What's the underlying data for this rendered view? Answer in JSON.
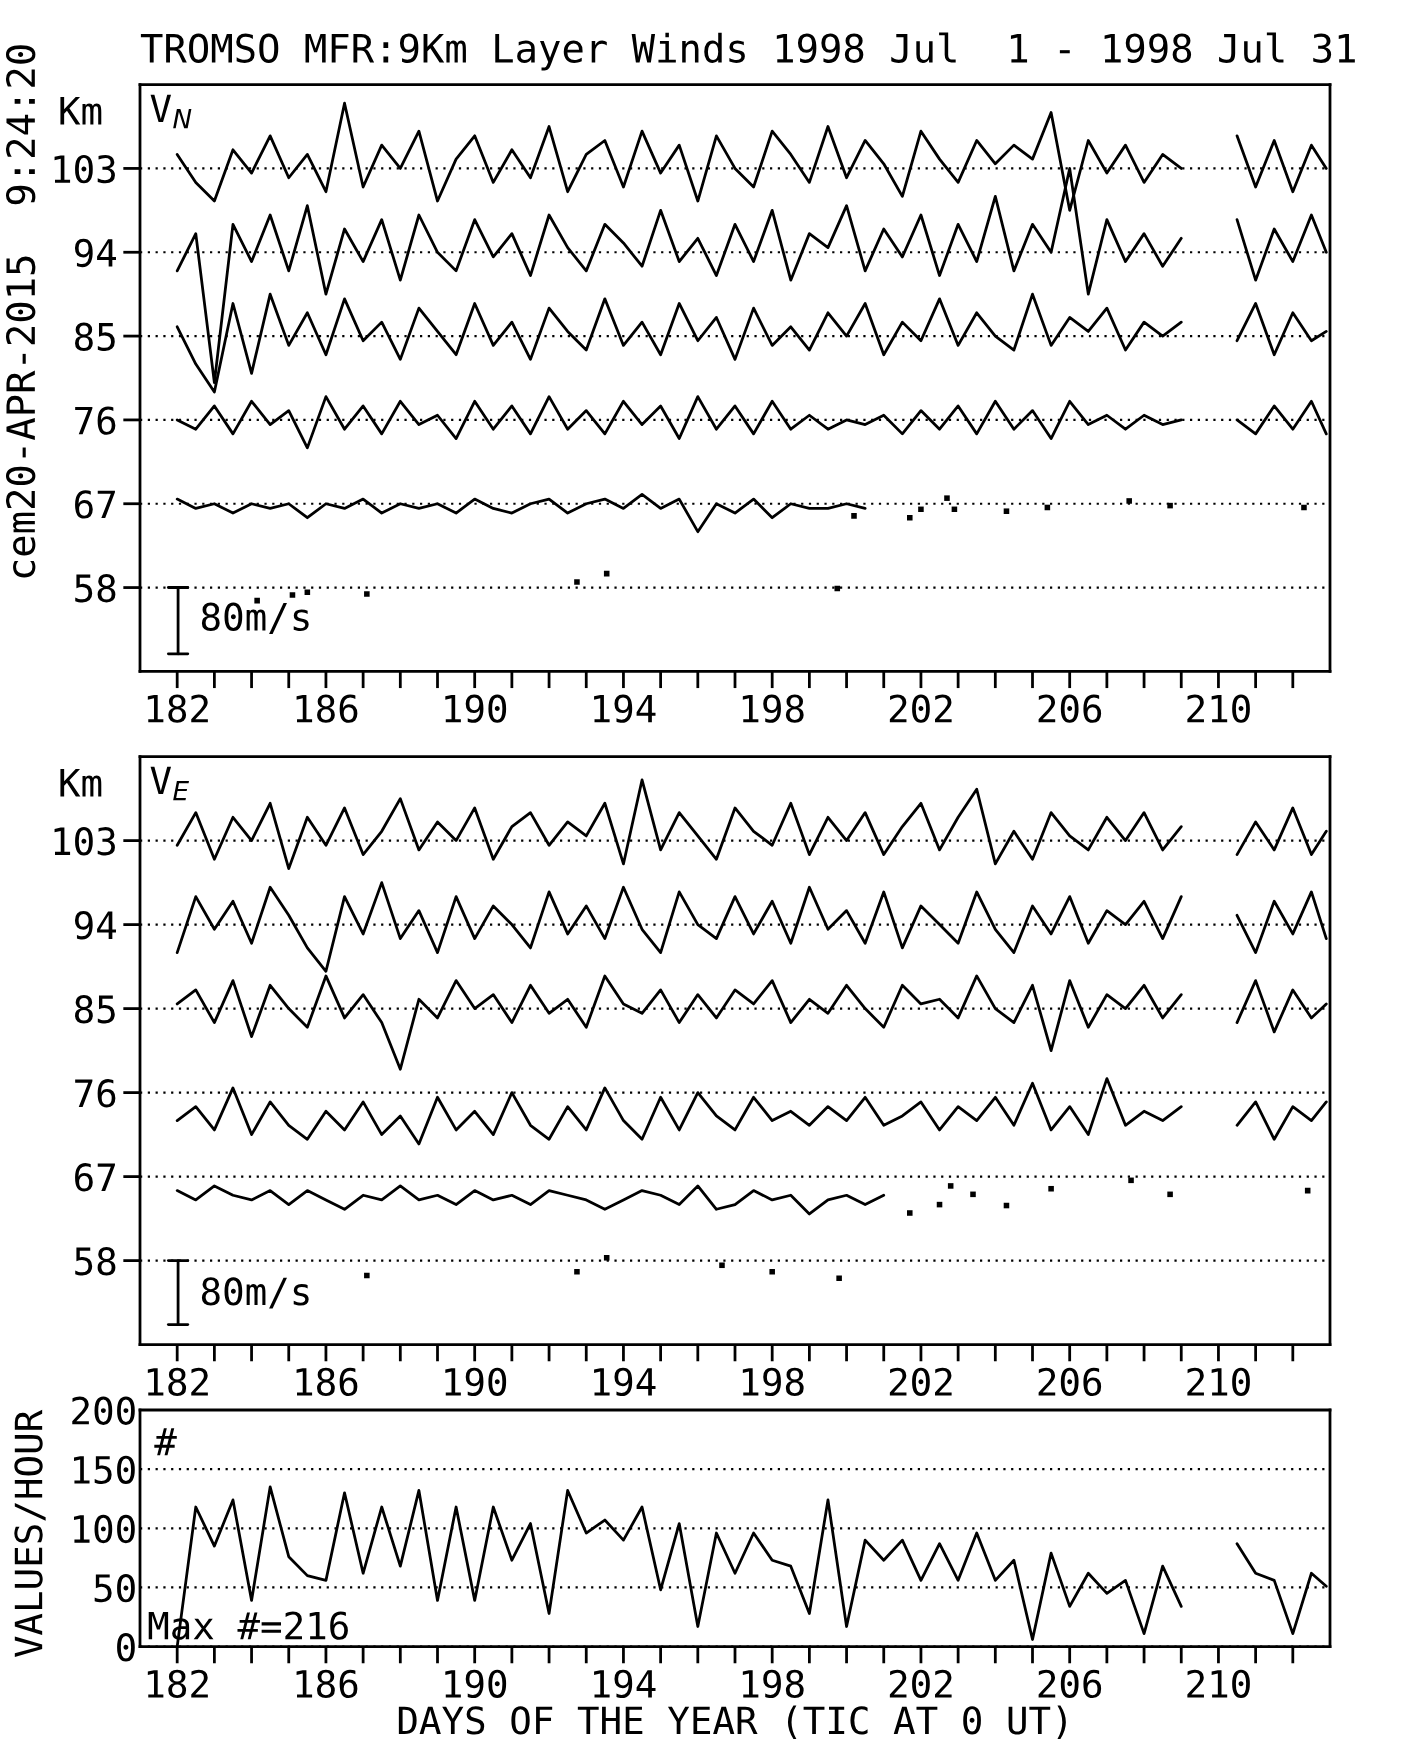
{
  "chart_data": [
    {
      "type": "line",
      "title": "TROMSO MFR:9Km Layer Winds 1998 Jul  1 - 1998 Jul 31",
      "ylabel": "Km",
      "annotations": [
        "cem20-APR-2015  9:24:20",
        "V$_{N}$",
        "80m/s"
      ],
      "x": [
        182,
        182.5,
        183,
        183.5,
        184,
        184.5,
        185,
        185.5,
        186,
        186.5,
        187,
        187.5,
        188,
        188.5,
        189,
        189.5,
        190,
        190.5,
        191,
        191.5,
        192,
        192.5,
        193,
        193.5,
        194,
        194.5,
        195,
        195.5,
        196,
        196.5,
        197,
        197.5,
        198,
        198.5,
        199,
        199.5,
        200,
        200.5,
        201,
        201.5,
        202,
        202.5,
        203,
        203.5,
        204,
        204.5,
        205,
        205.5,
        206,
        206.5,
        207,
        207.5,
        208,
        208.5,
        209,
        209.5,
        210,
        210.5,
        211,
        211.5,
        212,
        212.5,
        212.9
      ],
      "series": [
        {
          "color": "#000000",
          "values": [
            104.5,
            101.5,
            99.5,
            105.0,
            102.5,
            106.5,
            102.0,
            104.5,
            100.5,
            110.0,
            101.0,
            105.5,
            103.0,
            107.0,
            99.5,
            104.0,
            106.5,
            101.5,
            105.0,
            102.0,
            107.5,
            100.5,
            104.5,
            106.0,
            101.0,
            107.0,
            102.5,
            105.5,
            99.5,
            106.5,
            103.0,
            101.0,
            107.0,
            104.5,
            101.5,
            107.5,
            102.0,
            106.0,
            103.5,
            100.0,
            107.0,
            104.0,
            101.5,
            106.0,
            103.5,
            105.5,
            104.0,
            109.0,
            98.5,
            106.0,
            102.5,
            105.5,
            101.5,
            104.5,
            103.0,
            null,
            null,
            106.5,
            101.0,
            106.0,
            100.5,
            105.5,
            103.0
          ]
        },
        {
          "color": "#000000",
          "values": [
            92.0,
            96.0,
            80.0,
            97.0,
            93.0,
            98.0,
            92.0,
            99.0,
            89.5,
            96.5,
            93.0,
            97.5,
            91.0,
            98.0,
            94.0,
            92.0,
            97.5,
            93.5,
            96.0,
            91.5,
            98.0,
            94.5,
            92.0,
            97.0,
            95.0,
            92.5,
            98.5,
            93.0,
            95.5,
            91.5,
            97.0,
            93.0,
            98.5,
            91.0,
            96.0,
            94.5,
            99.0,
            92.0,
            96.5,
            93.5,
            98.0,
            91.5,
            97.0,
            93.0,
            100.0,
            92.0,
            97.0,
            94.0,
            103.0,
            89.5,
            97.5,
            93.0,
            96.0,
            92.5,
            95.5,
            null,
            null,
            97.5,
            91.0,
            96.5,
            93.0,
            98.0,
            94.0
          ]
        },
        {
          "color": "#000000",
          "values": [
            86.0,
            82.0,
            79.0,
            88.5,
            81.0,
            89.5,
            84.0,
            87.5,
            83.0,
            89.0,
            84.5,
            86.5,
            82.5,
            88.0,
            85.5,
            83.0,
            88.5,
            84.0,
            86.5,
            82.5,
            88.0,
            85.5,
            83.5,
            89.0,
            84.0,
            86.5,
            83.0,
            88.5,
            84.5,
            87.0,
            82.5,
            88.0,
            84.0,
            86.0,
            83.5,
            87.5,
            85.0,
            88.5,
            83.0,
            86.5,
            84.5,
            89.0,
            84.0,
            87.5,
            85.0,
            83.5,
            89.5,
            84.0,
            87.0,
            85.5,
            88.0,
            83.5,
            86.5,
            85.0,
            86.5,
            null,
            null,
            84.5,
            88.5,
            83.0,
            87.5,
            84.5,
            85.5
          ]
        },
        {
          "color": "#000000",
          "values": [
            76.0,
            75.0,
            77.5,
            74.5,
            78.0,
            75.5,
            77.0,
            73.0,
            78.5,
            75.0,
            77.5,
            74.5,
            78.0,
            75.5,
            76.5,
            74.0,
            78.0,
            75.0,
            77.5,
            74.5,
            78.5,
            75.0,
            77.0,
            74.5,
            78.0,
            75.5,
            77.5,
            74.0,
            78.5,
            75.0,
            77.5,
            74.5,
            78.0,
            75.0,
            76.5,
            75.0,
            76.0,
            75.5,
            76.5,
            74.5,
            77.0,
            75.0,
            77.5,
            74.5,
            78.0,
            75.0,
            77.0,
            74.0,
            78.0,
            75.5,
            76.5,
            75.0,
            76.5,
            75.5,
            76.0,
            null,
            null,
            76.0,
            74.5,
            77.5,
            75.0,
            78.0,
            74.5
          ]
        },
        {
          "color": "#000000",
          "values": [
            67.5,
            66.5,
            67.0,
            66.0,
            67.0,
            66.5,
            67.0,
            65.5,
            67.0,
            66.5,
            67.5,
            66.0,
            67.0,
            66.5,
            67.0,
            66.0,
            67.5,
            66.5,
            66.0,
            67.0,
            67.5,
            66.0,
            67.0,
            67.5,
            66.5,
            68.0,
            66.5,
            67.5,
            64.0,
            67.0,
            66.0,
            67.5,
            65.5,
            67.0,
            66.5,
            66.5,
            67.0,
            66.5,
            null,
            null,
            null,
            null,
            null,
            null,
            null,
            null,
            null,
            null,
            null,
            null,
            null,
            null,
            null,
            null,
            null,
            null,
            null,
            null,
            null,
            null,
            null,
            null,
            null
          ]
        },
        {
          "type": "scatter",
          "marker": "square",
          "color": "#000000",
          "x": [
            184.15,
            185.1,
            185.5,
            187.1,
            192.75,
            193.55,
            199.75,
            200.2,
            201.7,
            202.0,
            202.7,
            202.9,
            204.3,
            205.4,
            207.6,
            208.7,
            212.3
          ],
          "values": [
            56.6,
            57.2,
            57.5,
            57.3,
            58.6,
            59.5,
            57.9,
            65.7,
            65.5,
            66.4,
            67.6,
            66.4,
            66.2,
            66.6,
            67.3,
            66.8,
            66.6
          ]
        }
      ],
      "xlim": [
        181,
        213
      ],
      "xticks": [
        182,
        {
          "value": 183,
          "label": null
        },
        {
          "value": 184,
          "label": null
        },
        {
          "value": 185,
          "label": null
        },
        186,
        {
          "value": 187,
          "label": null
        },
        {
          "value": 188,
          "label": null
        },
        {
          "value": 189,
          "label": null
        },
        190,
        {
          "value": 191,
          "label": null
        },
        {
          "value": 192,
          "label": null
        },
        {
          "value": 193,
          "label": null
        },
        194,
        {
          "value": 195,
          "label": null
        },
        {
          "value": 196,
          "label": null
        },
        {
          "value": 197,
          "label": null
        },
        198,
        {
          "value": 199,
          "label": null
        },
        {
          "value": 200,
          "label": null
        },
        {
          "value": 201,
          "label": null
        },
        202,
        {
          "value": 203,
          "label": null
        },
        {
          "value": 204,
          "label": null
        },
        {
          "value": 205,
          "label": null
        },
        206,
        {
          "value": 207,
          "label": null
        },
        {
          "value": 208,
          "label": null
        },
        {
          "value": 209,
          "label": null
        },
        210,
        {
          "value": 211,
          "label": null
        },
        {
          "value": 212,
          "label": null
        }
      ],
      "ylim": [
        49,
        112
      ],
      "yticks": [
        58,
        67,
        76,
        85,
        94,
        103
      ],
      "grid": "y"
    },
    {
      "type": "line",
      "ylabel": "Km",
      "annotations": [
        "V$_{E}$",
        "80m/s"
      ],
      "x": [
        182,
        182.5,
        183,
        183.5,
        184,
        184.5,
        185,
        185.5,
        186,
        186.5,
        187,
        187.5,
        188,
        188.5,
        189,
        189.5,
        190,
        190.5,
        191,
        191.5,
        192,
        192.5,
        193,
        193.5,
        194,
        194.5,
        195,
        195.5,
        196,
        196.5,
        197,
        197.5,
        198,
        198.5,
        199,
        199.5,
        200,
        200.5,
        201,
        201.5,
        202,
        202.5,
        203,
        203.5,
        204,
        204.5,
        205,
        205.5,
        206,
        206.5,
        207,
        207.5,
        208,
        208.5,
        209,
        209.5,
        210,
        210.5,
        211,
        211.5,
        212,
        212.5,
        212.9
      ],
      "series": [
        {
          "color": "#000000",
          "values": [
            102.5,
            106.0,
            101.0,
            105.5,
            103.0,
            107.0,
            100.0,
            105.5,
            102.5,
            106.5,
            101.5,
            104.0,
            107.5,
            102.0,
            105.0,
            103.0,
            106.5,
            101.0,
            104.5,
            106.0,
            102.5,
            105.0,
            103.5,
            107.0,
            100.5,
            109.5,
            102.0,
            106.0,
            103.5,
            101.0,
            106.5,
            104.0,
            102.5,
            107.0,
            101.5,
            105.5,
            103.0,
            106.0,
            101.5,
            104.5,
            107.0,
            102.0,
            105.5,
            108.5,
            100.5,
            104.0,
            101.0,
            106.0,
            103.5,
            102.0,
            105.5,
            103.0,
            106.0,
            102.0,
            104.5,
            null,
            null,
            101.5,
            105.0,
            102.0,
            106.5,
            101.5,
            104.0
          ]
        },
        {
          "color": "#000000",
          "values": [
            91.0,
            97.0,
            93.5,
            96.5,
            92.0,
            98.0,
            95.0,
            91.5,
            89.0,
            97.0,
            93.0,
            98.5,
            92.5,
            95.5,
            91.0,
            97.0,
            92.5,
            96.0,
            94.0,
            91.5,
            97.5,
            93.0,
            96.0,
            92.5,
            98.0,
            93.5,
            91.0,
            97.5,
            94.0,
            92.5,
            97.0,
            93.0,
            96.5,
            92.0,
            98.0,
            93.5,
            95.5,
            92.0,
            97.5,
            91.5,
            96.0,
            94.0,
            92.0,
            97.5,
            93.5,
            91.0,
            96.0,
            93.0,
            97.0,
            92.0,
            95.5,
            94.0,
            96.5,
            92.5,
            97.0,
            null,
            null,
            95.0,
            91.0,
            96.5,
            93.0,
            97.5,
            92.5
          ]
        },
        {
          "color": "#000000",
          "values": [
            85.5,
            87.0,
            83.5,
            88.0,
            82.0,
            87.5,
            85.0,
            83.0,
            88.5,
            84.0,
            86.5,
            83.5,
            78.5,
            86.0,
            84.0,
            88.0,
            85.0,
            86.5,
            83.5,
            87.5,
            84.5,
            86.0,
            83.0,
            88.5,
            85.5,
            84.5,
            87.0,
            83.5,
            86.5,
            84.0,
            87.0,
            85.5,
            88.0,
            83.5,
            86.0,
            84.5,
            87.5,
            85.0,
            83.0,
            87.5,
            85.5,
            86.0,
            84.0,
            88.5,
            85.0,
            83.5,
            87.5,
            80.5,
            88.0,
            83.0,
            86.5,
            85.0,
            87.5,
            84.0,
            86.5,
            null,
            null,
            83.5,
            88.0,
            82.5,
            87.0,
            84.0,
            85.5
          ]
        },
        {
          "color": "#000000",
          "values": [
            73.0,
            74.5,
            72.0,
            76.5,
            71.5,
            75.0,
            72.5,
            71.0,
            74.0,
            72.0,
            75.0,
            71.5,
            73.5,
            70.5,
            75.5,
            72.0,
            74.0,
            71.5,
            76.0,
            72.5,
            71.0,
            74.5,
            72.0,
            76.5,
            73.0,
            71.0,
            75.5,
            72.0,
            76.0,
            73.5,
            72.0,
            75.5,
            73.0,
            74.0,
            72.5,
            74.5,
            73.0,
            75.5,
            72.5,
            73.5,
            75.0,
            72.0,
            74.5,
            73.0,
            75.5,
            72.5,
            77.0,
            72.0,
            74.5,
            71.5,
            77.5,
            72.5,
            74.0,
            73.0,
            74.5,
            null,
            null,
            72.5,
            75.0,
            71.0,
            74.5,
            73.0,
            75.0
          ]
        },
        {
          "color": "#000000",
          "values": [
            65.5,
            64.5,
            66.0,
            65.0,
            64.5,
            65.5,
            64.0,
            65.5,
            64.5,
            63.5,
            65.0,
            64.5,
            66.0,
            64.5,
            65.0,
            64.0,
            65.5,
            64.5,
            65.0,
            64.0,
            65.5,
            65.0,
            64.5,
            63.5,
            64.5,
            65.5,
            65.0,
            64.0,
            66.0,
            63.5,
            64.0,
            65.5,
            64.5,
            65.0,
            63.0,
            64.5,
            65.0,
            64.0,
            65.0,
            null,
            null,
            null,
            null,
            null,
            null,
            null,
            null,
            null,
            null,
            null,
            null,
            null,
            null,
            null,
            null,
            null,
            null,
            null,
            null,
            null,
            null,
            null,
            null
          ]
        },
        {
          "type": "scatter",
          "marker": "square",
          "color": "#000000",
          "x": [
            187.1,
            192.75,
            193.55,
            196.65,
            198.0,
            199.8,
            201.7,
            202.5,
            202.8,
            203.4,
            204.3,
            205.5,
            207.65,
            208.7,
            212.4
          ],
          "values": [
            56.4,
            56.8,
            58.3,
            57.5,
            56.8,
            56.1,
            63.1,
            64.0,
            66.0,
            65.1,
            63.9,
            65.7,
            66.6,
            65.1,
            65.5
          ]
        }
      ],
      "xlim": [
        181,
        213
      ],
      "xticks": [
        182,
        {
          "value": 183,
          "label": null
        },
        {
          "value": 184,
          "label": null
        },
        {
          "value": 185,
          "label": null
        },
        186,
        {
          "value": 187,
          "label": null
        },
        {
          "value": 188,
          "label": null
        },
        {
          "value": 189,
          "label": null
        },
        190,
        {
          "value": 191,
          "label": null
        },
        {
          "value": 192,
          "label": null
        },
        {
          "value": 193,
          "label": null
        },
        194,
        {
          "value": 195,
          "label": null
        },
        {
          "value": 196,
          "label": null
        },
        {
          "value": 197,
          "label": null
        },
        198,
        {
          "value": 199,
          "label": null
        },
        {
          "value": 200,
          "label": null
        },
        {
          "value": 201,
          "label": null
        },
        202,
        {
          "value": 203,
          "label": null
        },
        {
          "value": 204,
          "label": null
        },
        {
          "value": 205,
          "label": null
        },
        206,
        {
          "value": 207,
          "label": null
        },
        {
          "value": 208,
          "label": null
        },
        {
          "value": 209,
          "label": null
        },
        210,
        {
          "value": 211,
          "label": null
        },
        {
          "value": 212,
          "label": null
        }
      ],
      "ylim": [
        49,
        112
      ],
      "yticks": [
        58,
        67,
        76,
        85,
        94,
        103
      ],
      "grid": "y"
    },
    {
      "type": "line",
      "xlabel": "DAYS OF THE YEAR (TIC AT 0 UT)",
      "ylabel": "VALUES/HOUR",
      "annotations": [
        "#",
        "Max #=216"
      ],
      "x": [
        182,
        182.5,
        183,
        183.5,
        184,
        184.5,
        185,
        185.5,
        186,
        186.5,
        187,
        187.5,
        188,
        188.5,
        189,
        189.5,
        190,
        190.5,
        191,
        191.5,
        192,
        192.5,
        193,
        193.5,
        194,
        194.5,
        195,
        195.5,
        196,
        196.5,
        197,
        197.5,
        198,
        198.5,
        199,
        199.5,
        200,
        200.5,
        201,
        201.5,
        202,
        202.5,
        203,
        203.5,
        204,
        204.5,
        205,
        205.5,
        206,
        206.5,
        207,
        207.5,
        208,
        208.5,
        209,
        209.5,
        210,
        210.5,
        211,
        211.5,
        212,
        212.5,
        212.9
      ],
      "series": [
        {
          "color": "#000000",
          "values": [
            0,
            118,
            85,
            124,
            39,
            135,
            76,
            60,
            56,
            130,
            62,
            118,
            68,
            132,
            39,
            118,
            39,
            118,
            73,
            104,
            28,
            132,
            96,
            107,
            90,
            118,
            48,
            104,
            17,
            96,
            62,
            96,
            73,
            68,
            28,
            124,
            17,
            90,
            73,
            90,
            56,
            87,
            56,
            96,
            56,
            73,
            6,
            79,
            34,
            62,
            45,
            56,
            11,
            68,
            34,
            null,
            null,
            87,
            62,
            56,
            11,
            62,
            51
          ]
        }
      ],
      "xlim": [
        181,
        213
      ],
      "xticks": [
        182,
        {
          "value": 183,
          "label": null
        },
        {
          "value": 184,
          "label": null
        },
        {
          "value": 185,
          "label": null
        },
        186,
        {
          "value": 187,
          "label": null
        },
        {
          "value": 188,
          "label": null
        },
        {
          "value": 189,
          "label": null
        },
        190,
        {
          "value": 191,
          "label": null
        },
        {
          "value": 192,
          "label": null
        },
        {
          "value": 193,
          "label": null
        },
        194,
        {
          "value": 195,
          "label": null
        },
        {
          "value": 196,
          "label": null
        },
        {
          "value": 197,
          "label": null
        },
        198,
        {
          "value": 199,
          "label": null
        },
        {
          "value": 200,
          "label": null
        },
        {
          "value": 201,
          "label": null
        },
        202,
        {
          "value": 203,
          "label": null
        },
        {
          "value": 204,
          "label": null
        },
        {
          "value": 205,
          "label": null
        },
        206,
        {
          "value": 207,
          "label": null
        },
        {
          "value": 208,
          "label": null
        },
        {
          "value": 209,
          "label": null
        },
        210,
        {
          "value": 211,
          "label": null
        },
        {
          "value": 212,
          "label": null
        }
      ],
      "ylim": [
        0,
        200
      ],
      "yticks": [
        0,
        50,
        100,
        150,
        200
      ],
      "grid": "y"
    }
  ]
}
